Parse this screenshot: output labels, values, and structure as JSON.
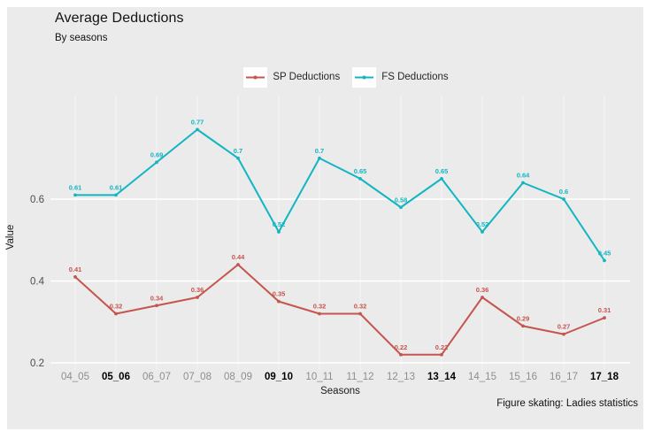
{
  "title": "Average Deductions",
  "subtitle": "By seasons",
  "caption": "Figure skating: Ladies statistics",
  "legend": [
    {
      "label": "SP Deductions",
      "color": "#c6554e"
    },
    {
      "label": "FS Deductions",
      "color": "#12b6c2"
    }
  ],
  "colors": {
    "background": "#ebebeb",
    "grid_major": "#ffffff",
    "grid_minor": "#f4f4f4",
    "tick_gray": "#8e8e8e",
    "tick_bold": "#000000",
    "y_tick": "#4d4d4d"
  },
  "chart_data": {
    "type": "line",
    "title": "Average Deductions",
    "subtitle": "By seasons",
    "xlabel": "Seasons",
    "ylabel": "Value",
    "categories": [
      "04_05",
      "05_06",
      "06_07",
      "07_08",
      "08_09",
      "09_10",
      "10_11",
      "11_12",
      "12_13",
      "13_14",
      "14_15",
      "15_16",
      "16_17",
      "17_18"
    ],
    "bold_categories": [
      "05_06",
      "09_10",
      "13_14",
      "17_18"
    ],
    "series": [
      {
        "name": "SP Deductions",
        "color": "#c6554e",
        "values": [
          0.41,
          0.32,
          0.34,
          0.36,
          0.44,
          0.35,
          0.32,
          0.32,
          0.22,
          0.22,
          0.36,
          0.29,
          0.27,
          0.31
        ]
      },
      {
        "name": "FS Deductions",
        "color": "#12b6c2",
        "values": [
          0.61,
          0.61,
          0.69,
          0.77,
          0.7,
          0.52,
          0.7,
          0.65,
          0.58,
          0.65,
          0.52,
          0.64,
          0.6,
          0.45
        ]
      }
    ],
    "yticks": [
      0.2,
      0.4,
      0.6
    ],
    "ylim": [
      0.18,
      0.85
    ],
    "grid": true,
    "point_labels": true,
    "legend_position": "top-center"
  }
}
